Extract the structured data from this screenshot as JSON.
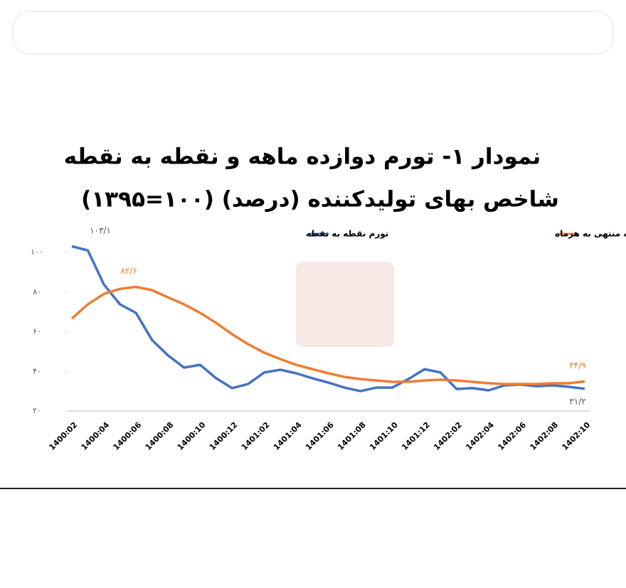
{
  "chart_data": {
    "type": "line",
    "title": "نمودار ۱- تورم دوازده ماهه و نقطه به نقطه",
    "subtitle": "شاخص بهای تولیدکننده (درصد) (۱۰۰=۱۳۹۵)",
    "categories": [
      "1400:02",
      null,
      "1400:04",
      null,
      "1400:06",
      null,
      "1400:08",
      null,
      "1400:10",
      null,
      "1400:12",
      null,
      "1401:02",
      null,
      "1401:04",
      null,
      "1401:06",
      null,
      "1401:08",
      null,
      "1401:10",
      null,
      "1401:12",
      null,
      "1402:02",
      null,
      "1402:04",
      null,
      "1402:06",
      null,
      "1402:08",
      null,
      "1402:10"
    ],
    "series": [
      {
        "name": "تورم نقطه به نقطه",
        "color": "#4472c4",
        "values": [
          103.1,
          101,
          83.8,
          73.8,
          69.5,
          55.8,
          48,
          41.9,
          43.3,
          36.5,
          31.5,
          33.6,
          39.4,
          40.8,
          39,
          36.5,
          34.3,
          31.8,
          30,
          31.8,
          31.8,
          36.1,
          41.1,
          39.4,
          31.1,
          31.5,
          30.4,
          32.9,
          33.3,
          32.5,
          32.9,
          32.2,
          31.2
        ],
        "value_labels": [
          "۱۰۳/۱",
          null,
          null,
          null,
          null,
          null,
          null,
          null,
          null,
          null,
          null,
          null,
          null,
          null,
          null,
          null,
          null,
          null,
          null,
          null,
          null,
          null,
          null,
          null,
          null,
          null,
          null,
          null,
          null,
          null,
          null,
          null,
          "۳۱/۲"
        ]
      },
      {
        "name": "تورم دوازده ماهه منتهی به هرماه",
        "color": "#ed7d31",
        "values": [
          66.6,
          73.8,
          79.1,
          81.6,
          82.6,
          81,
          77.3,
          73.8,
          69.5,
          64.4,
          58.7,
          53.7,
          49.4,
          46.2,
          43.3,
          41.1,
          39,
          37.2,
          36.1,
          35.4,
          34.7,
          34.7,
          35.4,
          35.8,
          35.4,
          34.7,
          34,
          33.6,
          33.6,
          33.6,
          34,
          34,
          34.9
        ],
        "value_labels": [
          null,
          null,
          null,
          null,
          "۸۲/۶",
          null,
          null,
          null,
          null,
          null,
          null,
          null,
          null,
          null,
          null,
          null,
          null,
          null,
          null,
          null,
          null,
          null,
          null,
          null,
          null,
          null,
          null,
          null,
          null,
          null,
          null,
          null,
          "۳۴/۹"
        ]
      }
    ],
    "ylim": [
      20,
      105
    ],
    "yticks": [
      {
        "value": 20,
        "label": "۲۰"
      },
      {
        "value": 40,
        "label": "۴۰"
      },
      {
        "value": 60,
        "label": "۶۰"
      },
      {
        "value": 80,
        "label": "۸۰"
      },
      {
        "value": 100,
        "label": "۱۰۰"
      }
    ]
  }
}
